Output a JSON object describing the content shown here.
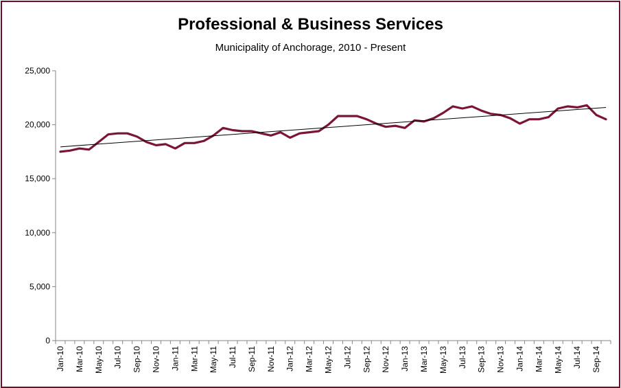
{
  "chart_data": {
    "type": "line",
    "title": "Professional & Business Services",
    "subtitle": "Municipality of Anchorage, 2010 - Present",
    "xlabel": "",
    "ylabel": "",
    "ylim": [
      0,
      25000
    ],
    "yticks": [
      0,
      5000,
      10000,
      15000,
      20000,
      25000
    ],
    "ytick_labels": [
      "0",
      "5,000",
      "10,000",
      "15,000",
      "20,000",
      "25,000"
    ],
    "grid": false,
    "legend": "none",
    "line_color": "#7a1535",
    "trend_color": "#000000",
    "x": [
      "Jan-10",
      "Feb-10",
      "Mar-10",
      "Apr-10",
      "May-10",
      "Jun-10",
      "Jul-10",
      "Aug-10",
      "Sep-10",
      "Oct-10",
      "Nov-10",
      "Dec-10",
      "Jan-11",
      "Feb-11",
      "Mar-11",
      "Apr-11",
      "May-11",
      "Jun-11",
      "Jul-11",
      "Aug-11",
      "Sep-11",
      "Oct-11",
      "Nov-11",
      "Dec-11",
      "Jan-12",
      "Feb-12",
      "Mar-12",
      "Apr-12",
      "May-12",
      "Jun-12",
      "Jul-12",
      "Aug-12",
      "Sep-12",
      "Oct-12",
      "Nov-12",
      "Dec-12",
      "Jan-13",
      "Feb-13",
      "Mar-13",
      "Apr-13",
      "May-13",
      "Jun-13",
      "Jul-13",
      "Aug-13",
      "Sep-13",
      "Oct-13",
      "Nov-13",
      "Dec-13",
      "Jan-14",
      "Feb-14",
      "Mar-14",
      "Apr-14",
      "May-14",
      "Jun-14",
      "Jul-14",
      "Aug-14",
      "Sep-14",
      "Oct-14"
    ],
    "x_tick_labels": [
      "Jan-10",
      "Mar-10",
      "May-10",
      "Jul-10",
      "Sep-10",
      "Nov-10",
      "Jan-11",
      "Mar-11",
      "May-11",
      "Jul-11",
      "Sep-11",
      "Nov-11",
      "Jan-12",
      "Mar-12",
      "May-12",
      "Jul-12",
      "Sep-12",
      "Nov-12",
      "Jan-13",
      "Mar-13",
      "May-13",
      "Jul-13",
      "Sep-13",
      "Nov-13",
      "Jan-14",
      "Mar-14",
      "May-14",
      "Jul-14",
      "Sep-14"
    ],
    "series": [
      {
        "values": [
          17500,
          17600,
          17800,
          17700,
          18400,
          19100,
          19200,
          19200,
          18900,
          18400,
          18100,
          18200,
          17800,
          18300,
          18300,
          18500,
          19000,
          19700,
          19500,
          19400,
          19400,
          19200,
          19000,
          19300,
          18800,
          19200,
          19300,
          19400,
          20000,
          20800,
          20800,
          20800,
          20500,
          20100,
          19800,
          19900,
          19700,
          20400,
          20300,
          20600,
          21100,
          21700,
          21500,
          21700,
          21300,
          21000,
          20900,
          20600,
          20100,
          20500,
          20500,
          20700,
          21500,
          21700,
          21600,
          21800,
          20900,
          20500
        ]
      }
    ],
    "trendline": {
      "start": 17950,
      "end": 21600
    }
  }
}
